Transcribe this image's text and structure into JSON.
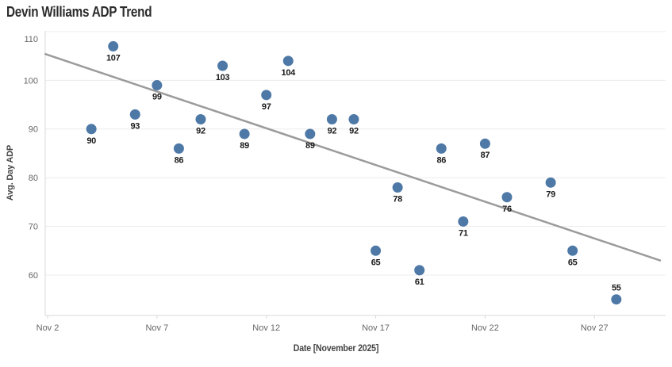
{
  "chart_data": {
    "type": "scatter",
    "title": "Devin Williams ADP Trend",
    "xlabel": "Date [November 2025]",
    "ylabel": "Avg. Day ADP",
    "x_unit": "day of month, November 2025",
    "ylim": [
      51.5,
      110.3
    ],
    "xlim_days": [
      1.9,
      30.3
    ],
    "grid": "horizontal-only",
    "legend": "none",
    "y_gridlines": [
      60,
      70,
      80,
      90,
      100,
      110
    ],
    "x_ticks": [
      {
        "day": 2,
        "label": "Nov 2"
      },
      {
        "day": 7,
        "label": "Nov 7"
      },
      {
        "day": 12,
        "label": "Nov 12"
      },
      {
        "day": 17,
        "label": "Nov 17"
      },
      {
        "day": 22,
        "label": "Nov 22"
      },
      {
        "day": 27,
        "label": "Nov 27"
      }
    ],
    "points": [
      {
        "day": 4,
        "adp": 90
      },
      {
        "day": 5,
        "adp": 107
      },
      {
        "day": 6,
        "adp": 93
      },
      {
        "day": 7,
        "adp": 99
      },
      {
        "day": 8,
        "adp": 86
      },
      {
        "day": 9,
        "adp": 92
      },
      {
        "day": 10,
        "adp": 103
      },
      {
        "day": 11,
        "adp": 89
      },
      {
        "day": 12,
        "adp": 97
      },
      {
        "day": 13,
        "adp": 104
      },
      {
        "day": 14,
        "adp": 89
      },
      {
        "day": 15,
        "adp": 92
      },
      {
        "day": 16,
        "adp": 92
      },
      {
        "day": 17,
        "adp": 65
      },
      {
        "day": 18,
        "adp": 78
      },
      {
        "day": 19,
        "adp": 61
      },
      {
        "day": 20,
        "adp": 86
      },
      {
        "day": 21,
        "adp": 71
      },
      {
        "day": 22,
        "adp": 87
      },
      {
        "day": 23,
        "adp": 76
      },
      {
        "day": 25,
        "adp": 79
      },
      {
        "day": 26,
        "adp": 65
      },
      {
        "day": 28,
        "adp": 55,
        "label_pos": "above"
      }
    ],
    "trendline": {
      "start": {
        "day": 1.9,
        "adp": 105.4
      },
      "end": {
        "day": 30.0,
        "adp": 63.0
      }
    },
    "colors": {
      "marker": "#4e79a7",
      "trend": "#9b9b9b",
      "grid": "#ececec",
      "axis": "#d8d8d8",
      "tick_label": "#666666",
      "point_label": "#1a1a1a",
      "title": "#2b2b2b",
      "axis_title": "#444444",
      "background": "#ffffff"
    }
  }
}
